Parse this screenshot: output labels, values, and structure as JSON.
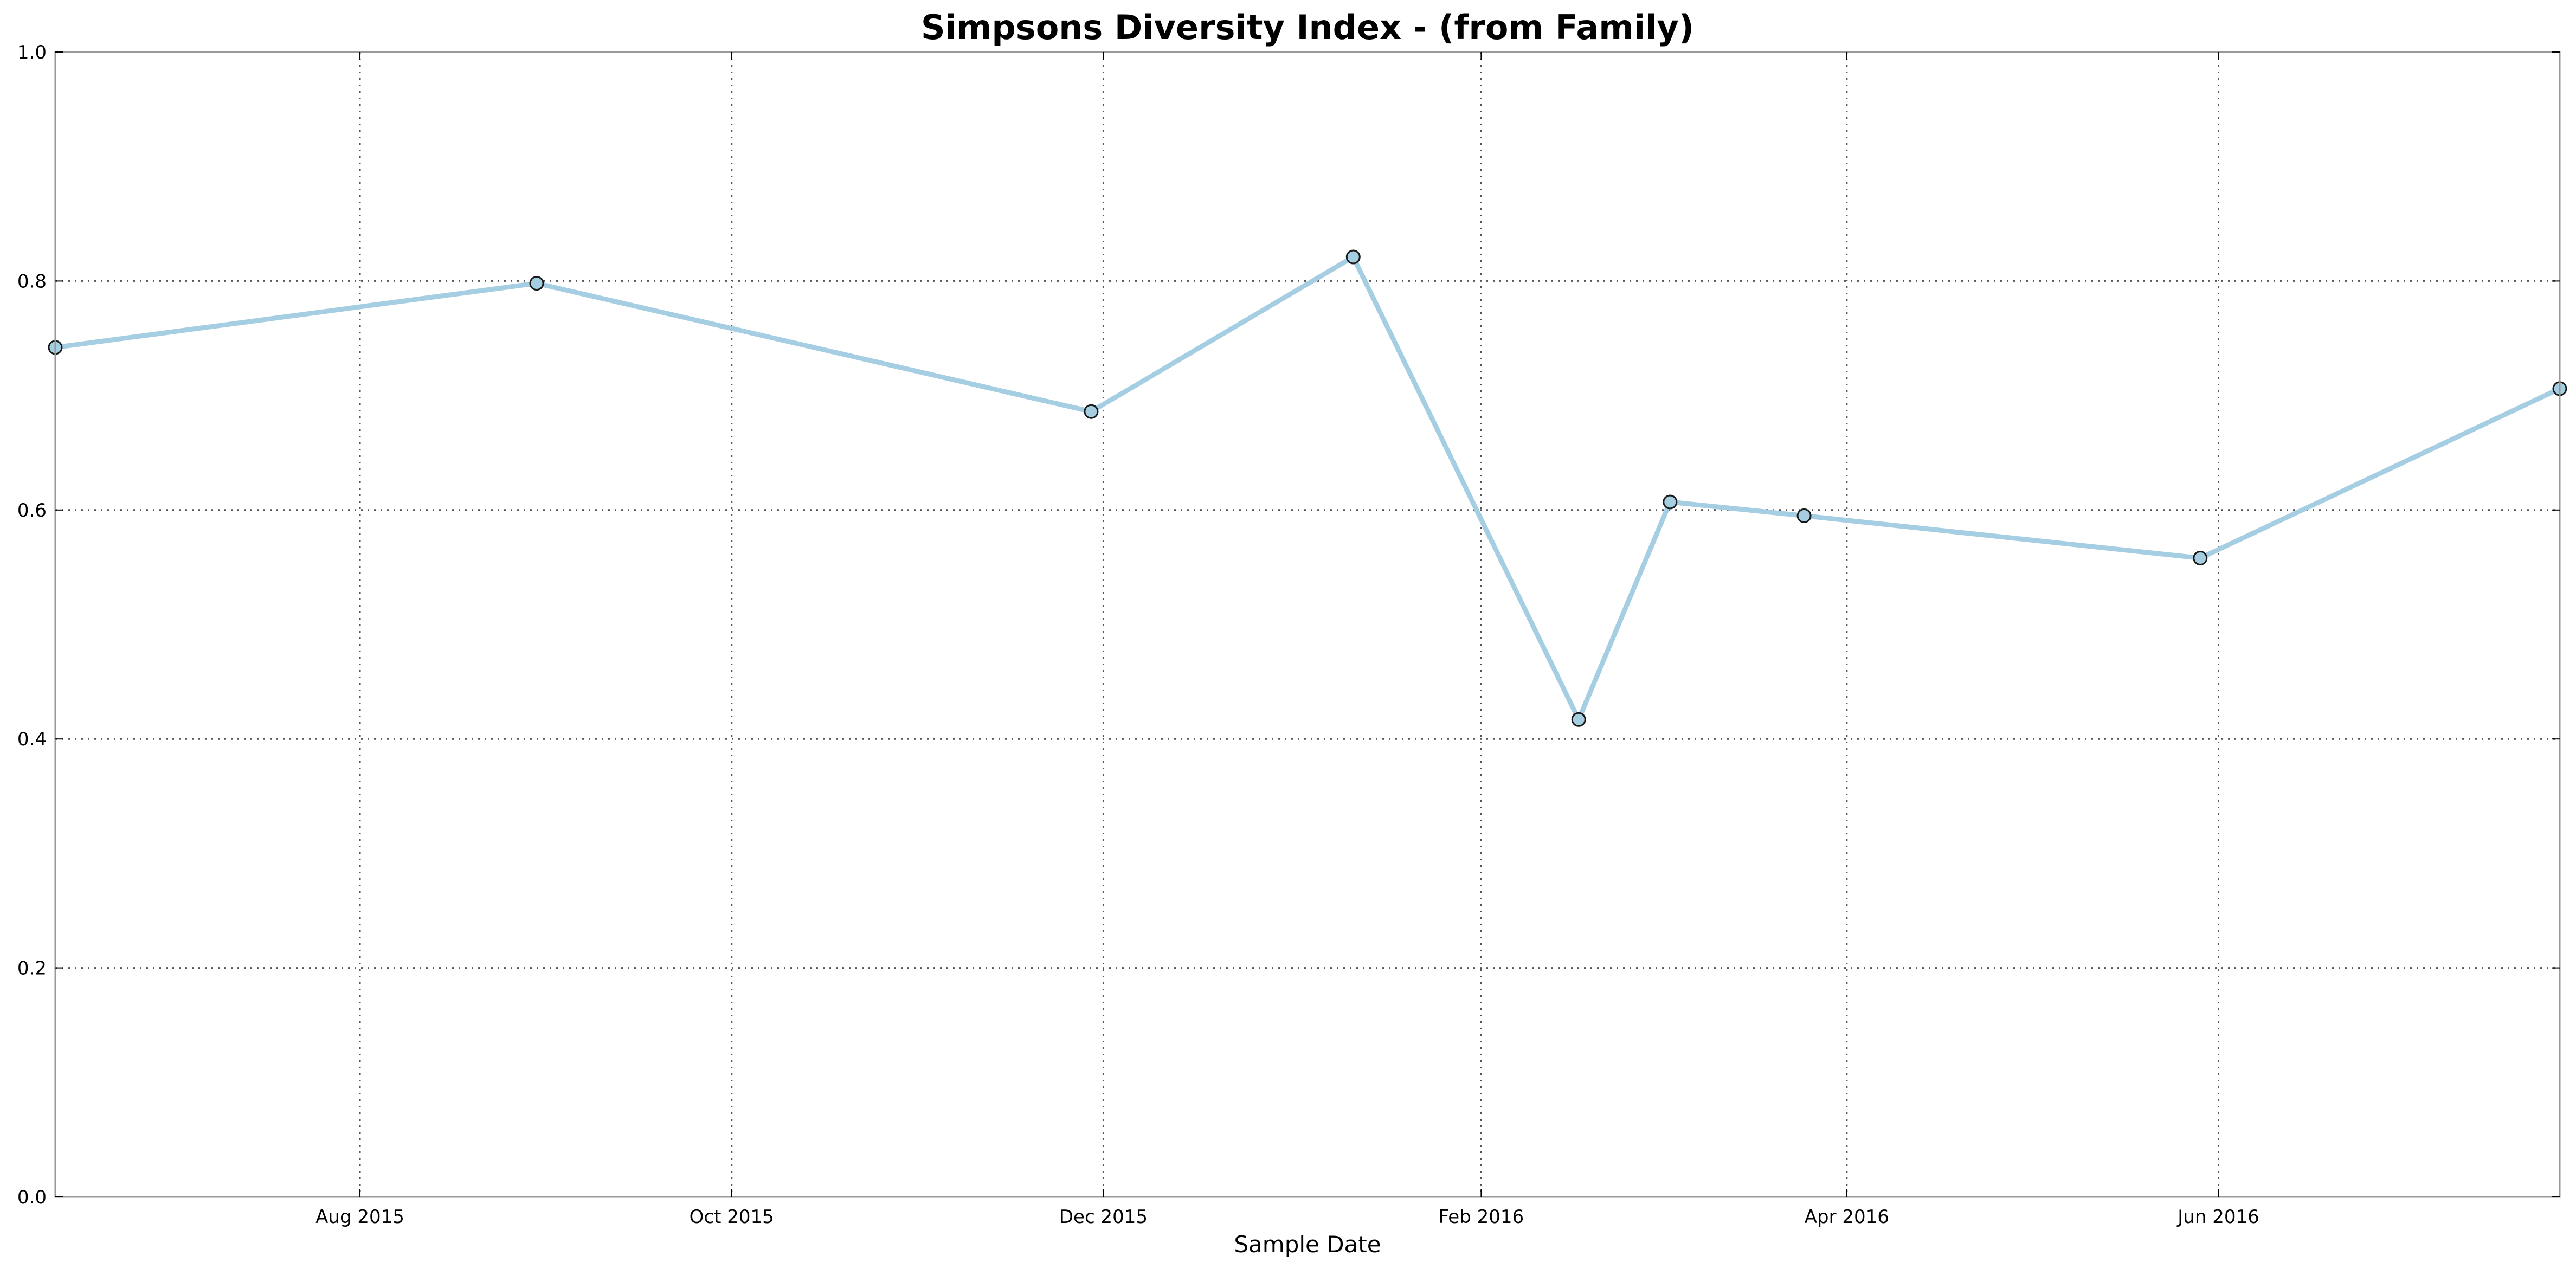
{
  "chart_data": {
    "type": "line",
    "title": "Simpsons Diversity Index - (from Family)",
    "xlabel": "Sample Date",
    "ylabel": "",
    "ylim": [
      0.0,
      1.0
    ],
    "yticks": [
      "0.0",
      "0.2",
      "0.4",
      "0.6",
      "0.8",
      "1.0"
    ],
    "xlim": [
      "2015-06-12",
      "2016-07-27"
    ],
    "xticks": [
      {
        "date": "2015-08-01",
        "label": "Aug 2015"
      },
      {
        "date": "2015-10-01",
        "label": "Oct 2015"
      },
      {
        "date": "2015-12-01",
        "label": "Dec 2015"
      },
      {
        "date": "2016-02-01",
        "label": "Feb 2016"
      },
      {
        "date": "2016-04-01",
        "label": "Apr 2016"
      },
      {
        "date": "2016-06-01",
        "label": "Jun 2016"
      }
    ],
    "grid": true,
    "line_color": "#a6cee3",
    "marker_edge_color": "#1a1a1a",
    "series": [
      {
        "x": [
          "2015-06-12",
          "2015-08-30",
          "2015-11-29",
          "2016-01-11",
          "2016-02-17",
          "2016-03-03",
          "2016-03-25",
          "2016-05-29",
          "2016-07-27"
        ],
        "y": [
          0.742,
          0.798,
          0.686,
          0.821,
          0.417,
          0.607,
          0.595,
          0.558,
          0.706
        ]
      }
    ]
  }
}
